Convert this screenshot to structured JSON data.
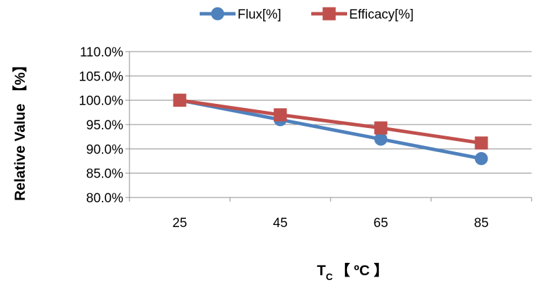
{
  "chart_data": {
    "type": "line",
    "title": "",
    "x": [
      25,
      45,
      65,
      85
    ],
    "x_tick_labels": [
      "25",
      "45",
      "65",
      "85"
    ],
    "series": [
      {
        "name": "Flux[%]",
        "color": "#4f81bd",
        "marker": "circle",
        "values": [
          100.0,
          96.0,
          92.0,
          88.0
        ]
      },
      {
        "name": "Efficacy[%]",
        "color": "#c0504d",
        "marker": "square",
        "values": [
          100.0,
          97.0,
          94.3,
          91.2
        ]
      }
    ],
    "ylim": [
      80.0,
      110.0
    ],
    "y_ticks": [
      80.0,
      85.0,
      90.0,
      95.0,
      100.0,
      105.0,
      110.0
    ],
    "y_tick_labels": [
      "80.0%",
      "85.0%",
      "90.0%",
      "95.0%",
      "100.0%",
      "105.0%",
      "110.0%"
    ],
    "ylabel": "Relative Value 【%】",
    "xlabel": {
      "main": "T",
      "subscript": "C",
      "suffix": "【 ºC 】"
    },
    "grid": true,
    "legend": "top"
  }
}
